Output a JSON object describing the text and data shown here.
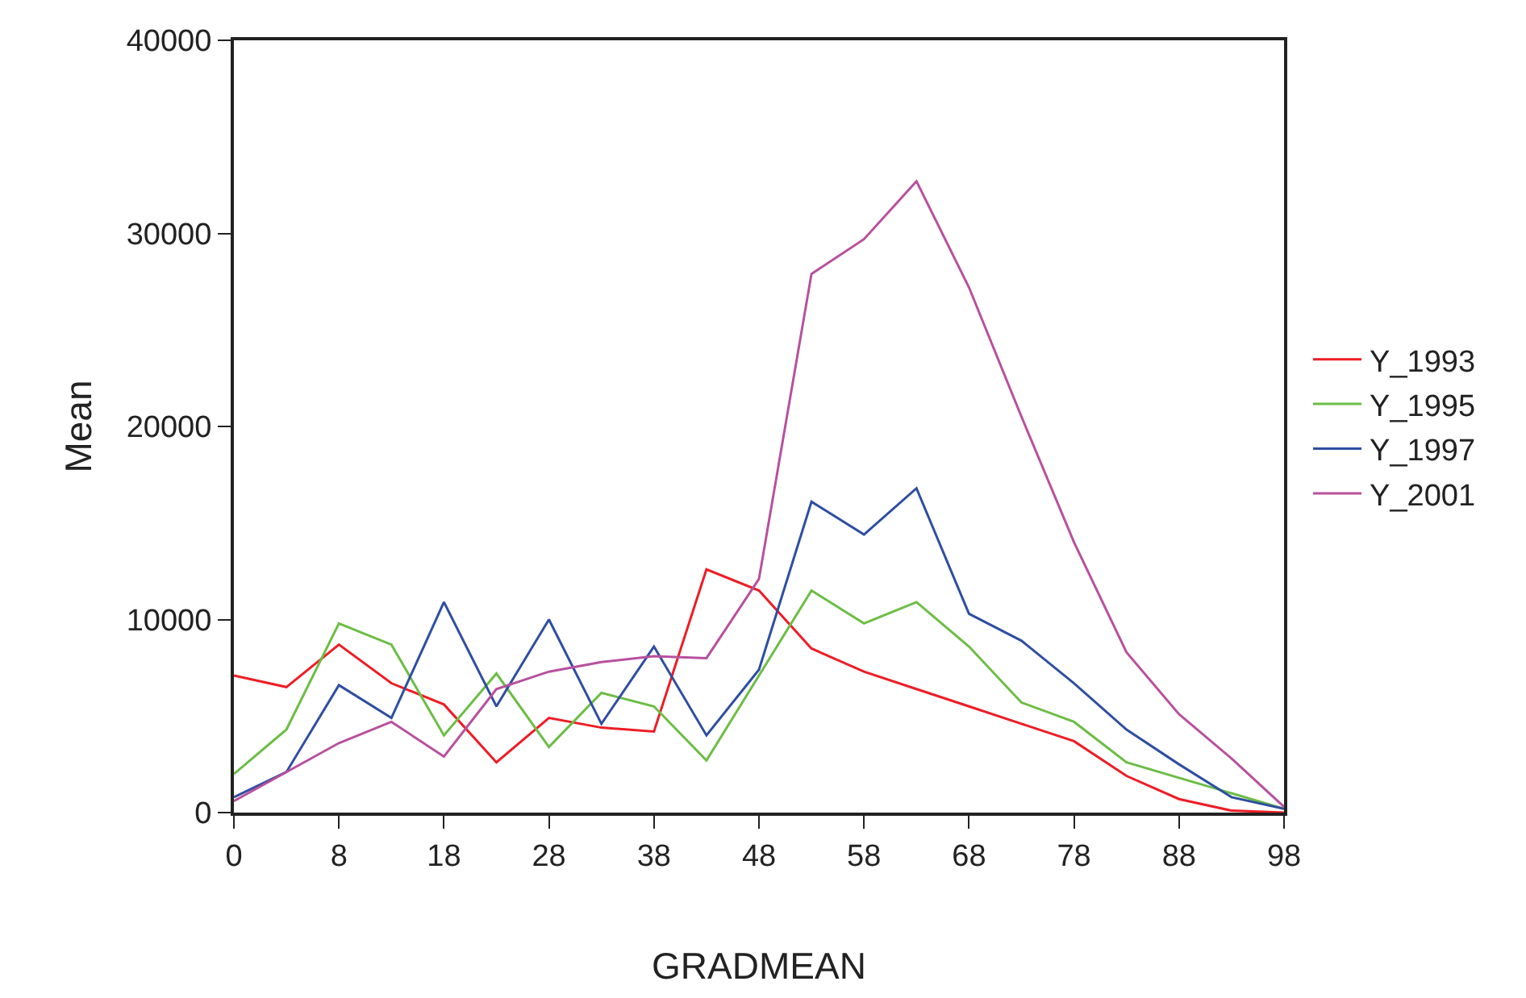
{
  "chart_data": {
    "type": "line",
    "xlabel": "GRADMEAN",
    "ylabel": "Mean",
    "categories": [
      "0",
      null,
      "8",
      null,
      "18",
      null,
      "28",
      null,
      "38",
      null,
      "48",
      null,
      "58",
      null,
      "68",
      null,
      "78",
      null,
      "88",
      null,
      "98"
    ],
    "ylim": [
      0,
      40000
    ],
    "yticks": [
      0,
      10000,
      20000,
      30000,
      40000
    ],
    "legend": "right",
    "marker": "none",
    "line_style": "solid",
    "series": [
      {
        "name": "Y_1993",
        "color": "#ee1c25",
        "values": [
          7100,
          6500,
          8700,
          6700,
          5600,
          2600,
          4900,
          4400,
          4200,
          12600,
          11500,
          8500,
          7300,
          6400,
          5500,
          4600,
          3700,
          1900,
          700,
          100,
          0
        ]
      },
      {
        "name": "Y_1995",
        "color": "#6cbd45",
        "values": [
          2000,
          4300,
          9800,
          8700,
          4000,
          7200,
          3400,
          6200,
          5500,
          2700,
          7100,
          11500,
          9800,
          10900,
          8600,
          5700,
          4700,
          2600,
          1800,
          1000,
          200
        ]
      },
      {
        "name": "Y_1997",
        "color": "#2e4ea1",
        "values": [
          800,
          2100,
          6600,
          4900,
          10900,
          5500,
          10000,
          4600,
          8600,
          4000,
          7400,
          16100,
          14400,
          16800,
          10300,
          8900,
          6700,
          4300,
          2500,
          800,
          200
        ]
      },
      {
        "name": "Y_2001",
        "color": "#b8509e",
        "values": [
          600,
          2100,
          3600,
          4700,
          2900,
          6400,
          7300,
          7800,
          8100,
          8000,
          12100,
          27900,
          29700,
          32700,
          27200,
          20500,
          14000,
          8300,
          5100,
          2800,
          300
        ]
      }
    ]
  }
}
